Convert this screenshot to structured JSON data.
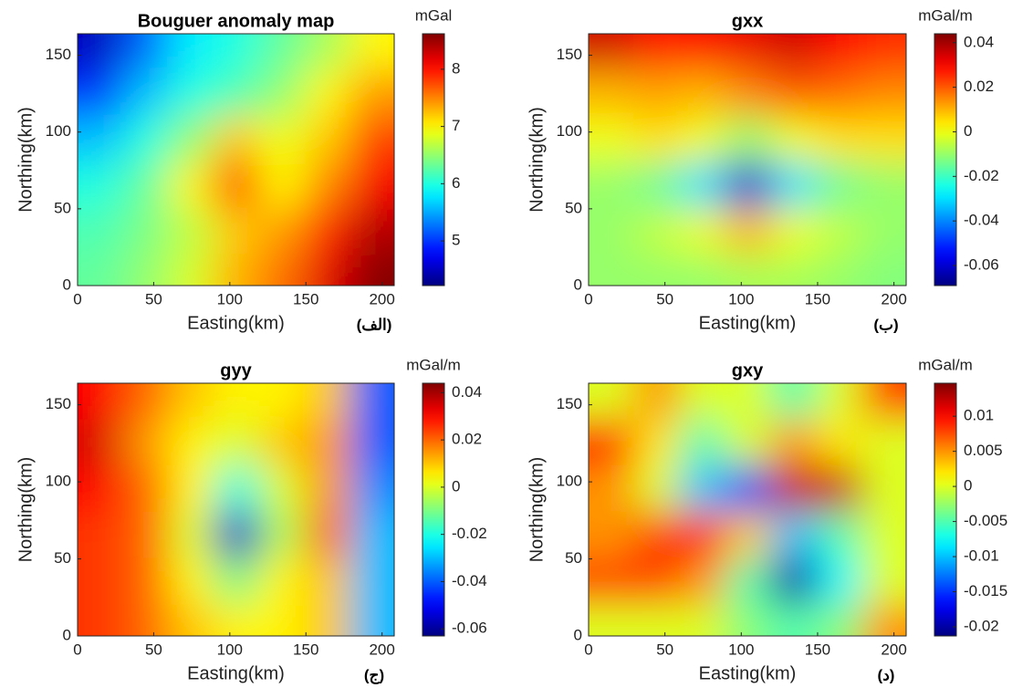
{
  "chart_data": [
    {
      "type": "heatmap",
      "title": "Bouguer anomaly map",
      "xlabel": "Easting(km)",
      "ylabel": "Northing(km)",
      "panel_label": "(الف)",
      "colorbar_label": "mGal",
      "colormap": "jet",
      "x": [
        15,
        45,
        75,
        105,
        135,
        165,
        195
      ],
      "y": [
        155,
        125,
        95,
        65,
        35,
        5
      ],
      "z": [
        [
          4.5,
          5.2,
          5.8,
          6.0,
          6.3,
          6.6,
          7.0
        ],
        [
          5.0,
          5.6,
          6.0,
          6.2,
          6.5,
          7.0,
          7.4
        ],
        [
          5.6,
          6.0,
          6.5,
          7.2,
          6.9,
          7.2,
          7.8
        ],
        [
          6.0,
          6.3,
          7.0,
          7.8,
          7.0,
          7.5,
          8.1
        ],
        [
          6.2,
          6.4,
          6.7,
          7.2,
          7.4,
          7.9,
          8.4
        ],
        [
          6.3,
          6.5,
          6.8,
          7.3,
          7.6,
          8.2,
          8.6
        ]
      ],
      "xlim": [
        0,
        208
      ],
      "ylim": [
        0,
        164
      ],
      "xticks": [
        0,
        50,
        100,
        150,
        200
      ],
      "yticks": [
        0,
        50,
        100,
        150
      ],
      "clim": [
        4.22,
        8.62
      ],
      "cticks": [
        5,
        6,
        7,
        8
      ]
    },
    {
      "type": "heatmap",
      "title": "gxx",
      "xlabel": "Easting(km)",
      "ylabel": "Northing(km)",
      "panel_label": "(ب)",
      "colorbar_label": "mGal/m",
      "colormap": "jet",
      "x": [
        15,
        45,
        75,
        105,
        135,
        165,
        195
      ],
      "y": [
        155,
        125,
        95,
        65,
        35,
        5
      ],
      "z": [
        [
          0.035,
          0.028,
          0.03,
          0.032,
          0.035,
          0.03,
          0.025
        ],
        [
          0.01,
          0.012,
          0.01,
          0.015,
          0.02,
          0.018,
          0.015
        ],
        [
          0.0,
          0.005,
          0.0,
          -0.01,
          0.0,
          0.005,
          0.005
        ],
        [
          -0.01,
          -0.015,
          -0.03,
          -0.06,
          -0.03,
          -0.015,
          -0.01
        ],
        [
          -0.01,
          -0.005,
          0.0,
          0.01,
          0.0,
          -0.005,
          -0.01
        ],
        [
          -0.01,
          -0.01,
          -0.01,
          -0.008,
          -0.008,
          -0.01,
          -0.012
        ]
      ],
      "xlim": [
        0,
        208
      ],
      "ylim": [
        0,
        164
      ],
      "xticks": [
        0,
        50,
        100,
        150,
        200
      ],
      "yticks": [
        0,
        50,
        100,
        150
      ],
      "clim": [
        -0.069,
        0.044
      ],
      "cticks": [
        -0.06,
        -0.04,
        -0.02,
        0,
        0.02,
        0.04
      ]
    },
    {
      "type": "heatmap",
      "title": "gyy",
      "xlabel": "Easting(km)",
      "ylabel": "Northing(km)",
      "panel_label": "(ج)",
      "colorbar_label": "mGal/m",
      "colormap": "jet",
      "x": [
        15,
        45,
        75,
        105,
        135,
        165,
        195
      ],
      "y": [
        155,
        125,
        95,
        65,
        35,
        5
      ],
      "z": [
        [
          0.03,
          0.02,
          0.01,
          0.005,
          0.005,
          0.01,
          -0.04
        ],
        [
          0.035,
          0.015,
          0.005,
          0.0,
          0.01,
          0.015,
          -0.04
        ],
        [
          0.03,
          0.02,
          0.005,
          -0.02,
          0.0,
          0.015,
          -0.035
        ],
        [
          0.025,
          0.02,
          0.0,
          -0.055,
          -0.005,
          0.02,
          -0.03
        ],
        [
          0.025,
          0.02,
          0.005,
          -0.01,
          0.005,
          0.01,
          -0.03
        ],
        [
          0.025,
          0.02,
          0.01,
          0.005,
          0.005,
          0.01,
          -0.03
        ]
      ],
      "xlim": [
        0,
        208
      ],
      "ylim": [
        0,
        164
      ],
      "xticks": [
        0,
        50,
        100,
        150,
        200
      ],
      "yticks": [
        0,
        50,
        100,
        150
      ],
      "clim": [
        -0.063,
        0.044
      ],
      "cticks": [
        -0.06,
        -0.04,
        -0.02,
        0,
        0.02,
        0.04
      ]
    },
    {
      "type": "heatmap",
      "title": "gxy",
      "xlabel": "Easting(km)",
      "ylabel": "Northing(km)",
      "panel_label": "(د)",
      "colorbar_label": "mGal/m",
      "colormap": "jet",
      "x": [
        15,
        45,
        75,
        105,
        135,
        165,
        195
      ],
      "y": [
        155,
        125,
        95,
        65,
        35,
        5
      ],
      "z": [
        [
          0.0,
          0.005,
          0.0,
          0.0,
          -0.005,
          0.0,
          0.008
        ],
        [
          0.01,
          0.002,
          -0.005,
          0.0,
          0.005,
          0.002,
          0.0
        ],
        [
          0.005,
          0.0,
          -0.01,
          -0.015,
          0.012,
          0.012,
          0.0
        ],
        [
          0.005,
          0.008,
          0.01,
          0.003,
          -0.01,
          -0.005,
          0.0
        ],
        [
          0.008,
          0.008,
          0.005,
          -0.005,
          -0.02,
          -0.008,
          0.0
        ],
        [
          0.0,
          0.0,
          0.0,
          -0.003,
          -0.005,
          -0.003,
          0.005
        ]
      ],
      "xlim": [
        0,
        208
      ],
      "ylim": [
        0,
        164
      ],
      "xticks": [
        0,
        50,
        100,
        150,
        200
      ],
      "yticks": [
        0,
        50,
        100,
        150
      ],
      "clim": [
        -0.0213,
        0.0147
      ],
      "cticks": [
        -0.02,
        -0.015,
        -0.01,
        -0.005,
        0,
        0.005,
        0.01
      ]
    }
  ]
}
